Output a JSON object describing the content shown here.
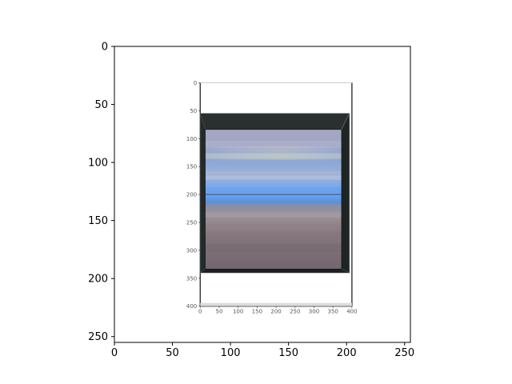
{
  "chart_data": {
    "type": "image",
    "x_ticks": [
      "0",
      "50",
      "100",
      "150",
      "200",
      "250"
    ],
    "y_ticks": [
      "0",
      "50",
      "100",
      "150",
      "200",
      "250"
    ],
    "xlim": [
      0,
      255
    ],
    "ylim": [
      255,
      0
    ],
    "y_inverted": true,
    "image_extent": {
      "x": [
        0,
        255
      ],
      "y": [
        255,
        0
      ]
    },
    "embedded_image": {
      "description_visible": "photograph of a matplotlib figure showing a framed blurred seascape",
      "x_ticks": [
        "0",
        "50",
        "100",
        "150",
        "200",
        "250",
        "300",
        "350",
        "400"
      ],
      "y_ticks": [
        "0",
        "50",
        "100",
        "150",
        "200",
        "250",
        "300",
        "350",
        "400"
      ],
      "extent": [
        0,
        400
      ],
      "inner_axes_range": {
        "x": [
          56,
          206
        ],
        "y": [
          30,
          230
        ]
      },
      "frame_range_inner_units": {
        "x": [
          0,
          393
        ],
        "y": [
          55,
          340
        ]
      },
      "canvas_range_inner_units": {
        "x": [
          14,
          372
        ],
        "y": [
          84,
          333
        ]
      },
      "horizon_level_inner_units": 200
    },
    "colors": {
      "frame": "#1e2222",
      "sky_top": "#a3a2bc",
      "sky_blue": "#6fa0e5",
      "sea_bottom": "#7a6a70",
      "spine": "#000000"
    },
    "grid": false
  }
}
